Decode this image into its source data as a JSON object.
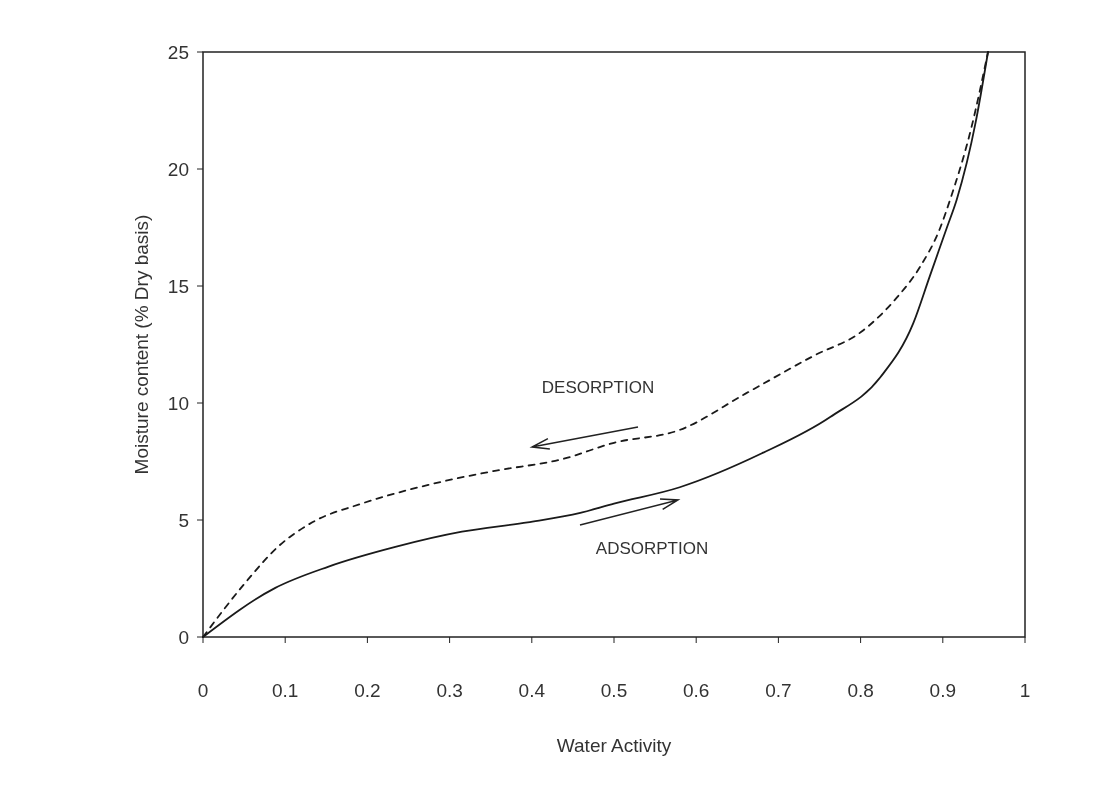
{
  "chart_data": {
    "type": "line",
    "xlabel": "Water Activity",
    "ylabel": "Moisture content (% Dry basis)",
    "xlim": [
      0,
      1
    ],
    "ylim": [
      0,
      25
    ],
    "xticks": [
      0,
      0.1,
      0.2,
      0.3,
      0.4,
      0.5,
      0.6,
      0.7,
      0.8,
      0.9,
      1
    ],
    "yticks": [
      0,
      5,
      10,
      15,
      20,
      25
    ],
    "grid": false,
    "series": [
      {
        "color": "#1a1a1a",
        "line_style": "solid",
        "x": [
          0,
          0.088,
          0.152,
          0.234,
          0.315,
          0.395,
          0.459,
          0.5,
          0.58,
          0.68,
          0.763,
          0.824,
          0.864,
          0.884,
          0.905,
          0.917,
          0.94,
          0.955
        ],
        "values": [
          0,
          2.1,
          3.0,
          3.85,
          4.5,
          4.9,
          5.3,
          5.7,
          6.4,
          7.85,
          9.4,
          11.1,
          13.4,
          15.4,
          17.5,
          18.7,
          22,
          25
        ]
      },
      {
        "color": "#1a1a1a",
        "line_style": "dashed",
        "x": [
          0,
          0.051,
          0.091,
          0.133,
          0.193,
          0.274,
          0.355,
          0.437,
          0.5,
          0.58,
          0.66,
          0.742,
          0.803,
          0.844,
          0.872,
          0.897,
          0.909,
          0.935,
          0.955
        ],
        "values": [
          0,
          2.3,
          3.85,
          4.9,
          5.7,
          6.5,
          7.1,
          7.6,
          8.3,
          8.85,
          10.4,
          12.0,
          13.1,
          14.5,
          15.8,
          17.5,
          18.7,
          21.8,
          25
        ]
      }
    ],
    "annotations": [
      "DESORPTION",
      "ADSORPTION"
    ]
  }
}
